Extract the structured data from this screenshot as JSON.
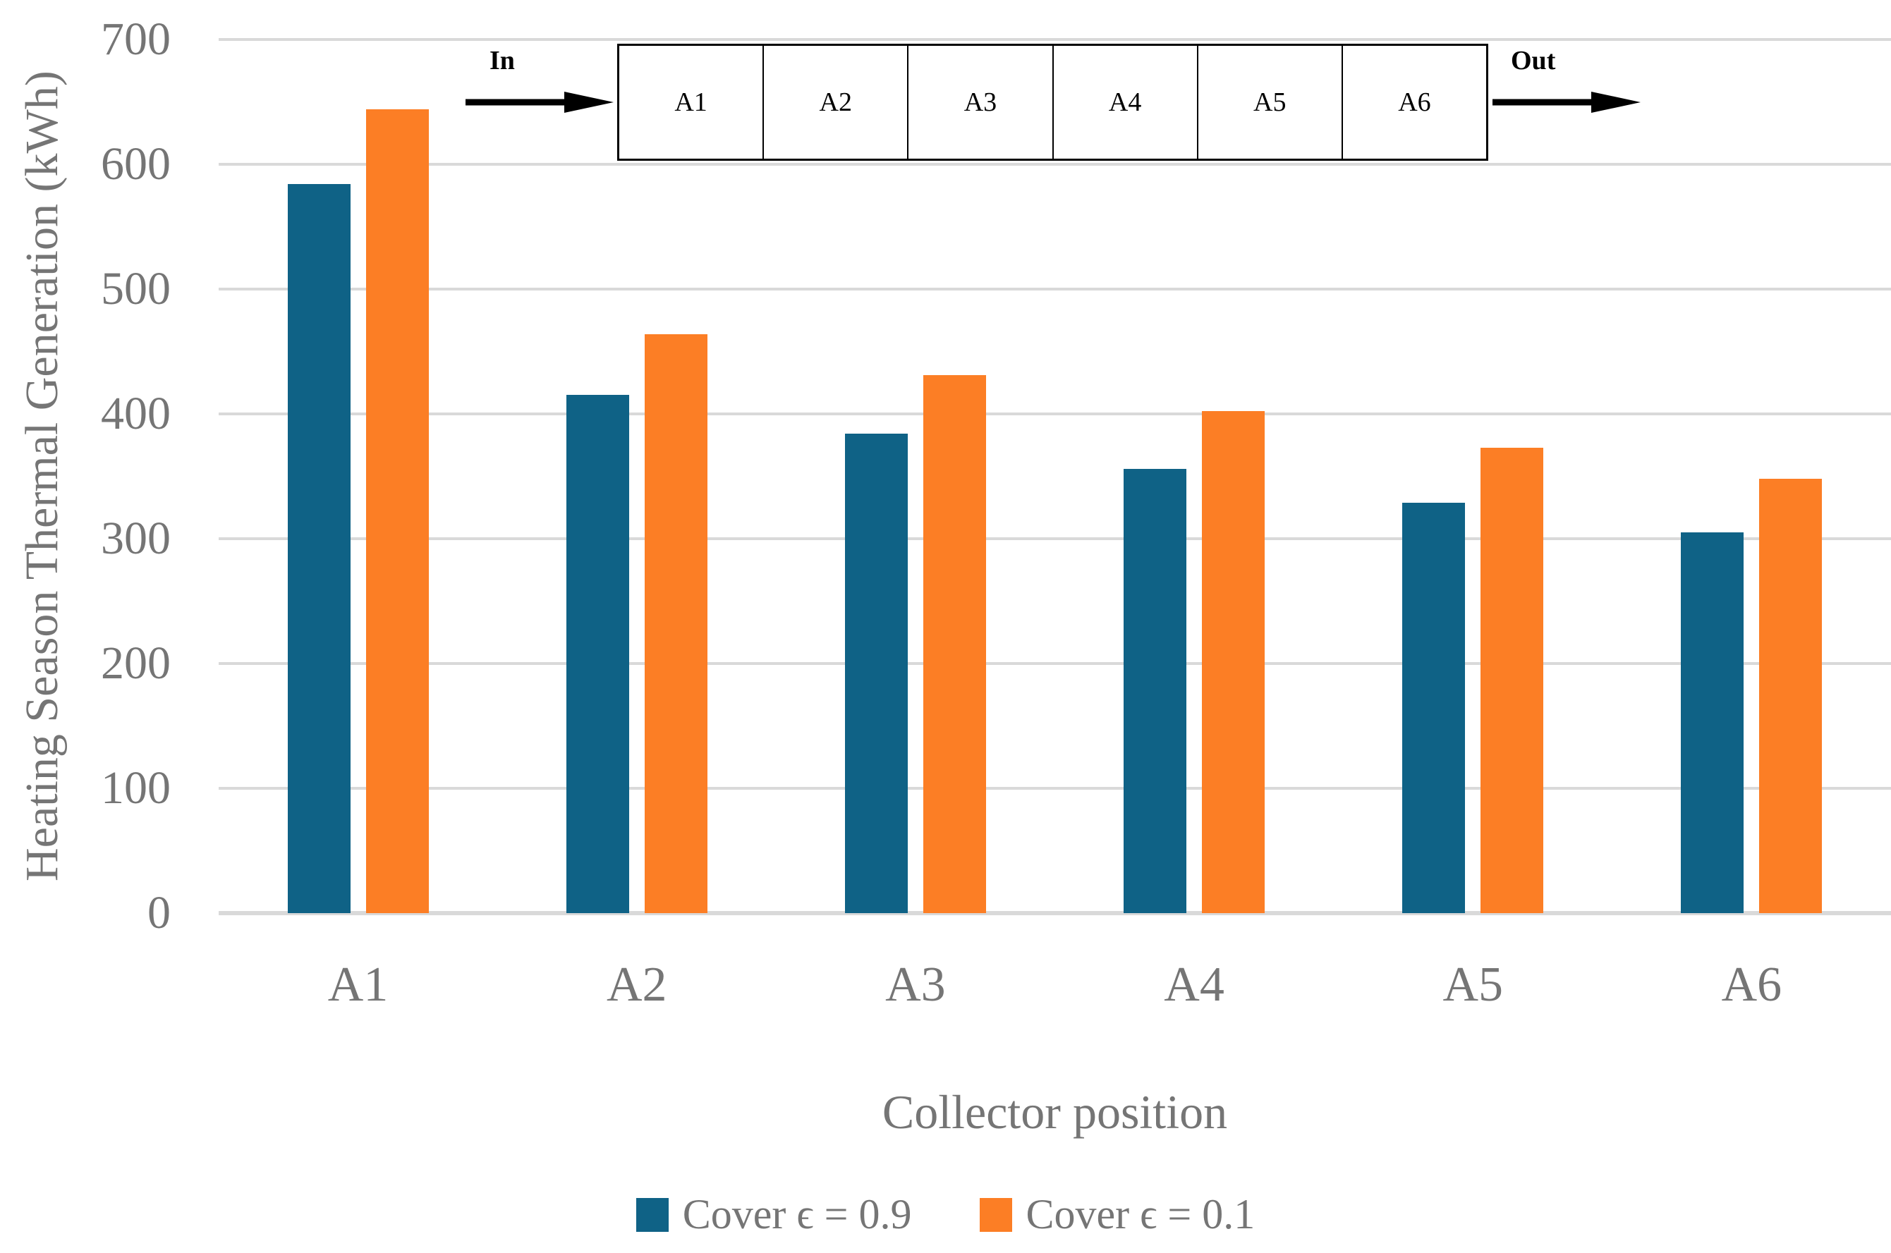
{
  "chart_data": {
    "type": "bar",
    "title": "",
    "categories": [
      "A1",
      "A2",
      "A3",
      "A4",
      "A5",
      "A6"
    ],
    "series": [
      {
        "name": "Cover ϵ = 0.9",
        "color": "#0F6286",
        "values": [
          584,
          415,
          384,
          356,
          329,
          305
        ]
      },
      {
        "name": "Cover ϵ = 0.1",
        "color": "#FC7E25",
        "values": [
          644,
          464,
          431,
          402,
          373,
          348
        ]
      }
    ],
    "xlabel": "Collector position",
    "ylabel": "Heating Season Thermal Generation (kWh)",
    "ylim": [
      0,
      700
    ],
    "yticks": [
      0,
      100,
      200,
      300,
      400,
      500,
      600,
      700
    ],
    "grid": true,
    "gridline_color": "#D9D9D9",
    "axis_text_color": "#757575",
    "legend_position": "bottom"
  },
  "inset_diagram": {
    "in_label": "In",
    "out_label": "Out",
    "cells": [
      "A1",
      "A2",
      "A3",
      "A4",
      "A5",
      "A6"
    ]
  }
}
